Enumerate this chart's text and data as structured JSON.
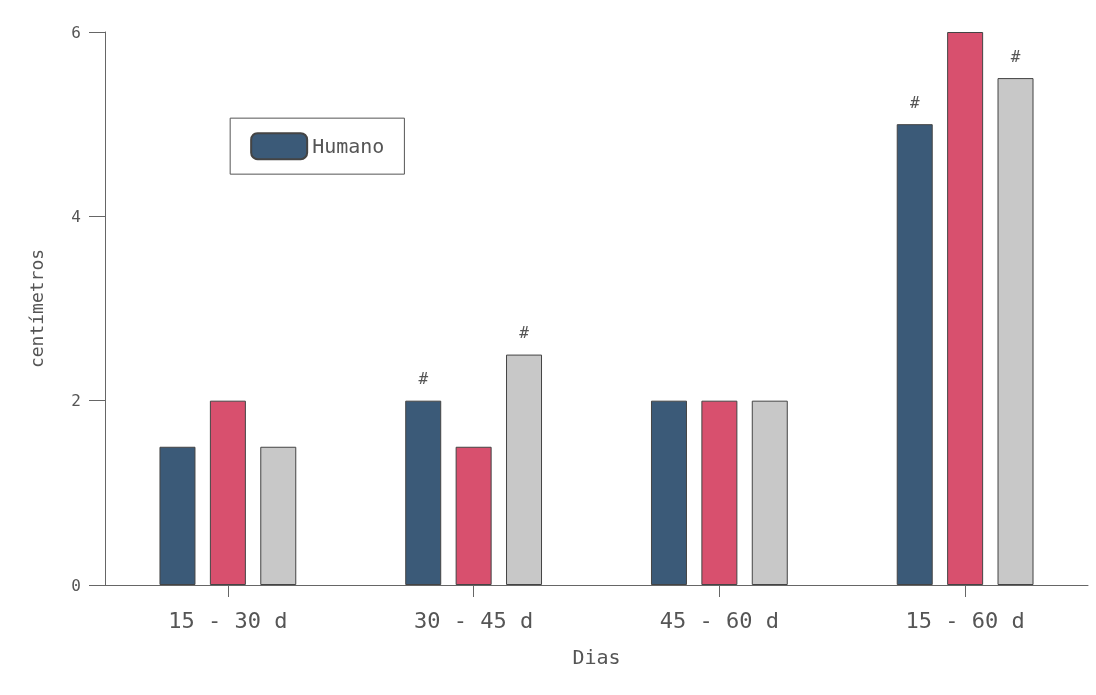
{
  "chart_data": {
    "type": "bar",
    "xlabel": "Dias",
    "ylabel": "centímetros",
    "categories": [
      "15 - 30 d",
      "30 - 45 d",
      "45 - 60 d",
      "15 - 60 d"
    ],
    "series": [
      {
        "name": "Humano",
        "color": "#3b5a78",
        "values": [
          1.5,
          2,
          2,
          5
        ],
        "value_labels": [
          null,
          "#",
          null,
          "#"
        ]
      },
      {
        "color": "#d8506e",
        "values": [
          2,
          1.5,
          2,
          6
        ]
      },
      {
        "color": "#c8c8c8",
        "values": [
          1.5,
          2.5,
          2,
          5.5
        ],
        "value_labels": [
          null,
          "#",
          null,
          "#"
        ]
      }
    ],
    "ylim": [
      0,
      6
    ],
    "yticks": [
      0,
      2,
      4,
      6
    ],
    "grid": false,
    "legend": "top left"
  }
}
